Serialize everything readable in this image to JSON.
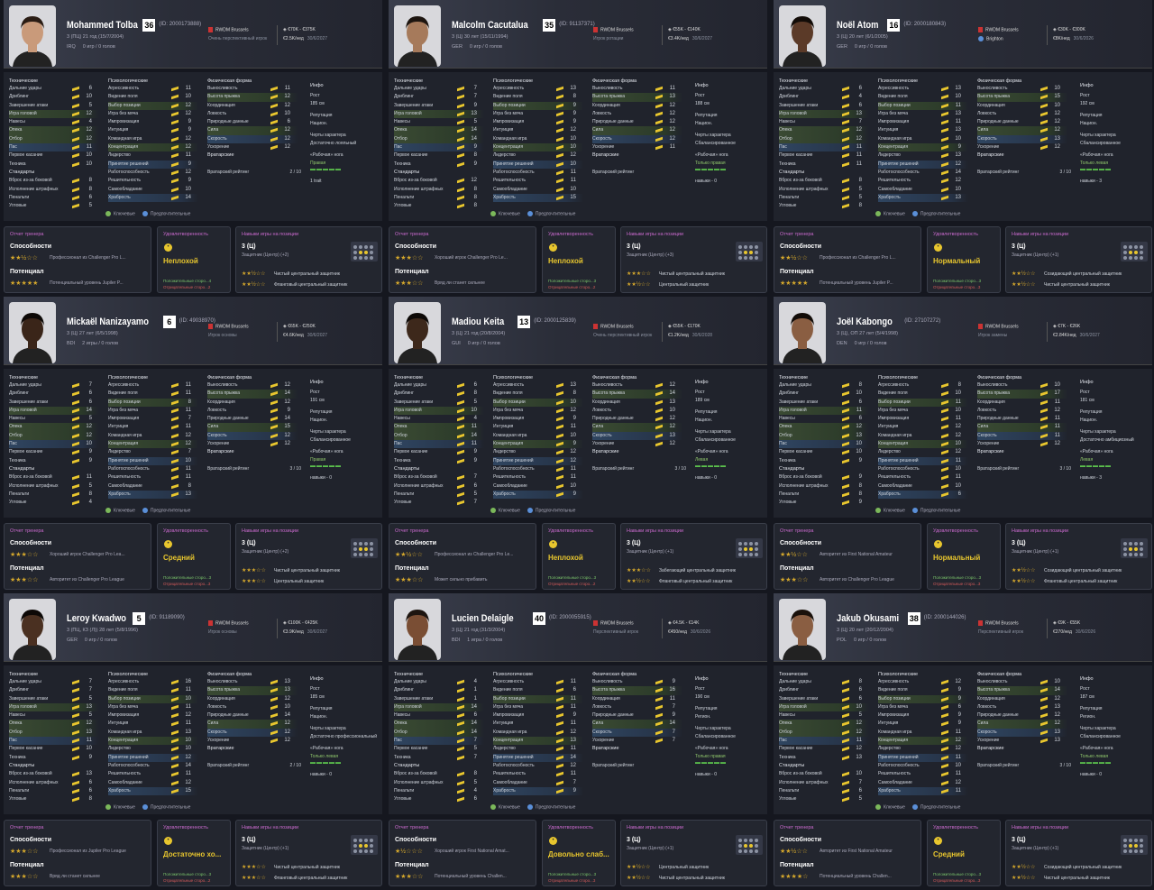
{
  "labels": {
    "technical": "Технические",
    "mental": "Психологические",
    "physical": "Физическая форма",
    "info": "Инфо",
    "height": "Рост",
    "reputation": "Репутация",
    "personality": "Черты характера",
    "foot": "«Рабочая» нога",
    "goalkeeping": "Вратарские",
    "gk_rating": "Вратарский рейтинг",
    "set_pieces": "Стандарты",
    "key": "Ключевые",
    "preferable": "Предпочтительные",
    "scout_report": "Отчет тренера",
    "ability": "Способности",
    "potential": "Потенциал",
    "satisfaction": "Удовлетворенность",
    "positive": "Положительные сторо...",
    "negative": "Отрицательные сторо...",
    "position_skills": "Навыки игры на позиции"
  },
  "attr_names": {
    "technical": [
      "Дальние удары",
      "Дриблинг",
      "Завершение атаки",
      "Игра головой",
      "Навесы",
      "Опека",
      "Отбор",
      "Пас",
      "Первое касание",
      "Техника"
    ],
    "set_pieces": [
      "Вброс из-за боковой",
      "Исполнение штрафных",
      "Пенальти",
      "Угловые"
    ],
    "mental": [
      "Агрессивность",
      "Видение поля",
      "Выбор позиции",
      "Игра без мяча",
      "Импровизация",
      "Интуиция",
      "Командная игра",
      "Концентрация",
      "Лидерство",
      "Принятие решений",
      "Работоспособность",
      "Решительность",
      "Самообладание",
      "Храбрость"
    ],
    "physical": [
      "Выносливость",
      "Высота прыжка",
      "Координация",
      "Ловкость",
      "Природные данные",
      "Сила",
      "Скорость",
      "Ускорение"
    ]
  },
  "players": [
    {
      "name": "Mohammed Tolba",
      "number": "36",
      "id": "(ID: 2000173888)",
      "info": "3 (ПЦ)  21 год (15/7/2004)",
      "nation": "IRQ",
      "games": "0 игр / 0 голов",
      "club": "RWDM Brussels",
      "role": "Очень перспективный игрок",
      "value": "€70K - €375K",
      "wage": "€2.5K/нед",
      "contract": "30/6/2027",
      "skin": "#c99a7a",
      "hair": "#2a1c14",
      "technical": [
        6,
        10,
        5,
        12,
        4,
        12,
        12,
        11,
        10,
        10
      ],
      "set_pieces": [
        8,
        8,
        6,
        5
      ],
      "mental": [
        11,
        10,
        12,
        12,
        9,
        9,
        12,
        12,
        11,
        9,
        12,
        9,
        10,
        14
      ],
      "physical": [
        11,
        12,
        12,
        10,
        6,
        12,
        12,
        12
      ],
      "height": "185 см",
      "reputation": "Национ.",
      "personality": "Достаточно лояльный",
      "foot": "Правая",
      "gk": "2 / 10",
      "extra": "1 trait",
      "ability_stars": "★★½☆☆",
      "ability_text": "Профессионал из Challenger Pro L...",
      "potential_stars": "★★★★★",
      "potential_text": "Потенциальный уровень Jupiler P...",
      "morale": "Неплохой",
      "morale_pos": "Положительные сторо...4",
      "morale_neg": "Отрицательные сторо...2",
      "pos_title": "3 (Ц)",
      "pos_sub": "Защитник (Центр) (+2)",
      "r1_stars": "★★½☆☆",
      "r1": "Чистый центральный защитник",
      "r2_stars": "★★½☆☆",
      "r2": "Фланговый центральный защитник"
    },
    {
      "name": "Malcolm Cacutalua",
      "number": "35",
      "id": "(ID: 91137371)",
      "info": "3 (Ц)  30 лет (15/11/1994)",
      "nation": "GER",
      "games": "0 игр / 0 голов",
      "club": "RWDM Brussels",
      "role": "Игрок ротации",
      "value": "€55K - €140K",
      "wage": "€3.4K/нед",
      "contract": "30/6/2027",
      "skin": "#a67a5b",
      "hair": "#1d1510",
      "technical": [
        7,
        7,
        9,
        13,
        5,
        14,
        14,
        9,
        8,
        9
      ],
      "set_pieces": [
        12,
        8,
        8,
        8
      ],
      "mental": [
        13,
        8,
        9,
        9,
        9,
        12,
        10,
        10,
        12,
        10,
        11,
        11,
        10,
        15
      ],
      "physical": [
        11,
        13,
        12,
        12,
        12,
        12,
        12,
        11
      ],
      "height": "188 см",
      "reputation": "Национ.",
      "personality": "Сбалансированное",
      "foot": "Только правая",
      "gk": "",
      "extra": "навыки - 0",
      "ability_stars": "★★★☆☆",
      "ability_text": "Хороший игрок Challenger Pro Le...",
      "potential_stars": "★★★☆☆",
      "potential_text": "Вряд ли станет сильнее",
      "morale": "Неплохой",
      "morale_pos": "Положительные сторо...3",
      "morale_neg": "Отрицательные сторо...2",
      "pos_title": "3 (Ц)",
      "pos_sub": "Защитник (Центр) (+3)",
      "r1_stars": "★★★☆☆",
      "r1": "Чистый центральный защитник",
      "r2_stars": "★★½☆☆",
      "r2": "Центральный защитник"
    },
    {
      "name": "Noël Atom",
      "number": "16",
      "id": "(ID: 2000180843)",
      "info": "3 (Ц)  20 лет (6/1/2005)",
      "nation": "GER",
      "games": "0 игр / 0 голов",
      "club": "RWDM Brussels",
      "club2": "Brighton",
      "value": "€30K - €300K",
      "wage": "€8K/нед",
      "contract": "30/6/2026",
      "skin": "#5b3a28",
      "hair": "#120c08",
      "technical": [
        6,
        4,
        6,
        13,
        7,
        12,
        12,
        11,
        11,
        11
      ],
      "set_pieces": [
        8,
        5,
        5,
        8
      ],
      "mental": [
        13,
        10,
        11,
        13,
        11,
        13,
        10,
        9,
        13,
        12,
        14,
        12,
        10,
        13
      ],
      "physical": [
        10,
        15,
        10,
        12,
        12,
        12,
        13,
        12
      ],
      "height": "192 см",
      "reputation": "Национ.",
      "personality": "Сбалансированное",
      "foot": "Только левая",
      "gk": "3 / 10",
      "extra": "навыки - 3",
      "ability_stars": "★★½☆☆",
      "ability_text": "Профессионал из Challenger Pro L...",
      "potential_stars": "★★★★★",
      "potential_text": "Потенциальный уровень Jupiler P...",
      "morale": "Нормальный",
      "morale_pos": "Положительные сторо...3",
      "morale_neg": "Отрицательные сторо...3",
      "pos_title": "3 (Ц)",
      "pos_sub": "Защитник (Центр) (+1)",
      "r1_stars": "★★½☆☆",
      "r1": "Созидающий центральный защитник",
      "r2_stars": "★★½☆☆",
      "r2": "Чистый центральный защитник"
    },
    {
      "name": "Mickaël Nanizayamo",
      "number": "6",
      "id": "(ID: 49038970)",
      "info": "3 (Ц)  27 лет (6/5/1998)",
      "nation": "BDI",
      "games": "2 игры / 0 голов",
      "club": "RWDM Brussels",
      "role": "Игрок основы",
      "value": "€65K - €250K",
      "wage": "€4.6K/нед",
      "contract": "30/6/2027",
      "skin": "#3a2519",
      "hair": "#0d0907",
      "technical": [
        7,
        6,
        6,
        14,
        5,
        12,
        12,
        10,
        9,
        9
      ],
      "set_pieces": [
        11,
        5,
        8,
        4
      ],
      "mental": [
        11,
        11,
        8,
        11,
        7,
        11,
        12,
        12,
        7,
        10,
        11,
        11,
        8,
        13
      ],
      "physical": [
        12,
        14,
        12,
        9,
        14,
        15,
        12,
        12
      ],
      "height": "191 см",
      "reputation": "Национ.",
      "personality": "Сбалансированное",
      "foot": "Правая",
      "gk": "3 / 10",
      "extra": "навыки - 0",
      "ability_stars": "★★★☆☆",
      "ability_text": "Хороший игрок Challenger Pro Lea...",
      "potential_stars": "★★★☆☆",
      "potential_text": "Авторитет из Challenger Pro League",
      "morale": "Средний",
      "morale_pos": "Положительные сторо...3",
      "morale_neg": "Отрицательные сторо...3",
      "pos_title": "3 (Ц)",
      "pos_sub": "Защитник (Центр) (+2)",
      "r1_stars": "★★★☆☆",
      "r1": "Чистый центральный защитник",
      "r2_stars": "★★★☆☆",
      "r2": "Центральный защитник"
    },
    {
      "name": "Madiou Keita",
      "number": "13",
      "id": "(ID: 2000125839)",
      "info": "3 (Ц)  21 год (20/8/2004)",
      "nation": "GUI",
      "games": "0 игр / 0 голов",
      "club": "RWDM Brussels",
      "role": "Очень перспективный игрок",
      "value": "€55K - €170K",
      "wage": "€1.2K/нед",
      "contract": "30/6/2028",
      "skin": "#3d281b",
      "hair": "#0d0907",
      "technical": [
        6,
        8,
        5,
        10,
        4,
        11,
        14,
        11,
        9,
        9
      ],
      "set_pieces": [
        7,
        6,
        5,
        7
      ],
      "mental": [
        13,
        8,
        10,
        12,
        9,
        11,
        10,
        9,
        12,
        12,
        11,
        11,
        10,
        9
      ],
      "physical": [
        12,
        14,
        13,
        10,
        12,
        12,
        13,
        12
      ],
      "height": "189 см",
      "reputation": "Национ.",
      "personality": "Сбалансированное",
      "foot": "Левая",
      "gk": "3 / 10",
      "extra": "навыки - 0",
      "ability_stars": "★★½☆☆",
      "ability_text": "Профессионал из Challenger Pro Le...",
      "potential_stars": "★★★☆☆",
      "potential_text": "Может сильно прибавить",
      "morale": "Неплохой",
      "morale_pos": "Положительные сторо...3",
      "morale_neg": "Отрицательные сторо...2",
      "pos_title": "3 (Ц)",
      "pos_sub": "Защитник (Центр) (+1)",
      "r1_stars": "★★★☆☆",
      "r1": "Забегающий центральный защитник",
      "r2_stars": "★★½☆☆",
      "r2": "Фланговый центральный защитник"
    },
    {
      "name": "Joël Kabongo",
      "number": "",
      "id": "(ID: 27107272)",
      "info": "3 (Ц), ОП  27 лет (5/4/1998)",
      "nation": "DEN",
      "games": "0 игр / 0 голов",
      "club": "RWDM Brussels",
      "role": "Игрок замены",
      "value": "€7K - €26K",
      "wage": "€2.84K/нед",
      "contract": "30/6/2027",
      "skin": "#8a5e42",
      "hair": "#120c08",
      "technical": [
        8,
        10,
        6,
        11,
        6,
        12,
        13,
        10,
        10,
        9
      ],
      "set_pieces": [
        9,
        8,
        8,
        9
      ],
      "mental": [
        8,
        10,
        11,
        10,
        11,
        12,
        12,
        10,
        12,
        11,
        10,
        11,
        10,
        6
      ],
      "physical": [
        10,
        17,
        11,
        12,
        11,
        11,
        11,
        12
      ],
      "height": "181 см",
      "reputation": "Национ.",
      "personality": "Достаточно амбициозный",
      "foot": "Левая",
      "gk": "3 / 10",
      "extra": "навыки - 3",
      "ability_stars": "★★½☆☆",
      "ability_text": "Авторитет из First National Amateur",
      "potential_stars": "★★★☆☆",
      "potential_text": "Авторитет из Challenger Pro League",
      "morale": "Нормальный",
      "morale_pos": "Положительные сторо...3",
      "morale_neg": "Отрицательные сторо...3",
      "pos_title": "3 (Ц)",
      "pos_sub": "Защитник (Центр) (+1)",
      "r1_stars": "★★½☆☆",
      "r1": "Созидающий центральный защитник",
      "r2_stars": "★★½☆☆",
      "r2": "Фланговый центральный защитник"
    },
    {
      "name": "Leroy Kwadwo",
      "number": "5",
      "id": "(ID: 91189090)",
      "info": "3 (ПЦ, КЗ (Л))  28 лет (5/8/1996)",
      "nation": "GER",
      "games": "0 игр / 0 голов",
      "club": "RWDM Brussels",
      "role": "Игрок основы",
      "value": "€100K - €425K",
      "wage": "€3.9K/нед",
      "contract": "30/6/2027",
      "skin": "#4a3021",
      "hair": "#0d0907",
      "technical": [
        7,
        7,
        5,
        13,
        5,
        12,
        13,
        11,
        10,
        9
      ],
      "set_pieces": [
        13,
        6,
        6,
        8
      ],
      "mental": [
        16,
        11,
        10,
        11,
        12,
        11,
        13,
        10,
        10,
        12,
        14,
        11,
        12,
        15
      ],
      "physical": [
        13,
        13,
        12,
        10,
        14,
        12,
        12,
        12
      ],
      "height": "185 см",
      "reputation": "Национ.",
      "personality": "Достаточно профессиональный",
      "foot": "Только левая",
      "gk": "2 / 10",
      "extra": "навыки - 0",
      "ability_stars": "★★★☆☆",
      "ability_text": "Профессионал из Jupiler Pro League",
      "potential_stars": "★★★☆☆",
      "potential_text": "Вряд ли станет сильнее",
      "morale": "Достаточно хо...",
      "morale_pos": "Положительные сторо...3",
      "morale_neg": "Отрицательные сторо...2",
      "pos_title": "3 (Ц)",
      "pos_sub": "Защитник (Центр) (+1)",
      "r1_stars": "★★★☆☆",
      "r1": "Чистый центральный защитник",
      "r2_stars": "★★★☆☆",
      "r2": "Фланговый центральный защитник"
    },
    {
      "name": "Lucien Delaigle",
      "number": "40",
      "id": "(ID: 2000055915)",
      "info": "3 (Ц)  21 год (31/3/2004)",
      "nation": "BDI",
      "games": "1 игра / 0 голов",
      "club": "RWDM Brussels",
      "role": "Перспективный игрок",
      "value": "€4.5K - €14K",
      "wage": "€450/нед",
      "contract": "30/6/2026",
      "skin": "#7a4e34",
      "hair": "#1d1510",
      "technical": [
        4,
        1,
        1,
        14,
        6,
        14,
        14,
        7,
        5,
        7
      ],
      "set_pieces": [
        8,
        5,
        4,
        6
      ],
      "mental": [
        11,
        6,
        11,
        11,
        9,
        11,
        12,
        13,
        11,
        14,
        12,
        11,
        7,
        9
      ],
      "physical": [
        9,
        16,
        11,
        7,
        9,
        14,
        7,
        7
      ],
      "height": "190 см",
      "reputation": "Регион.",
      "personality": "Сбалансированное",
      "foot": "Только правая",
      "gk": "",
      "extra": "навыки - 0",
      "ability_stars": "★½☆☆☆",
      "ability_text": "Хороший игрок First National Amat...",
      "potential_stars": "★★★☆☆",
      "potential_text": "Потенциальный уровень Challen...",
      "morale": "Довольно слаб...",
      "morale_pos": "Положительные сторо...3",
      "morale_neg": "Отрицательные сторо...3",
      "pos_title": "3 (Ц)",
      "pos_sub": "Защитник (Центр) (+1)",
      "r1_stars": "★★½☆☆",
      "r1": "Центральный защитник",
      "r2_stars": "★★½☆☆",
      "r2": "Чистый центральный защитник"
    },
    {
      "name": "Jakub Okusami",
      "number": "38",
      "id": "(ID: 2000144026)",
      "info": "3 (Ц)  20 лет (20/12/2004)",
      "nation": "POL",
      "games": "0 игр / 0 голов",
      "club": "RWDM Brussels",
      "role": "Перспективный игрок",
      "value": "€9K - €55K",
      "wage": "€270/нед",
      "contract": "30/6/2026",
      "skin": "#8a5e42",
      "hair": "#1a110b",
      "technical": [
        8,
        6,
        6,
        10,
        5,
        12,
        12,
        11,
        12,
        13
      ],
      "set_pieces": [
        10,
        7,
        6,
        5
      ],
      "mental": [
        12,
        9,
        9,
        6,
        9,
        9,
        11,
        12,
        12,
        11,
        10,
        11,
        12,
        11
      ],
      "physical": [
        10,
        14,
        12,
        13,
        12,
        12,
        13,
        13
      ],
      "height": "187 см",
      "reputation": "Регион.",
      "personality": "Сбалансированное",
      "foot": "Только левая",
      "gk": "3 / 10",
      "extra": "навыки - 0",
      "ability_stars": "★★½☆☆",
      "ability_text": "Авторитет из First National Amateur",
      "potential_stars": "★★★★☆",
      "potential_text": "Потенциальный уровень Challen...",
      "morale": "Средний",
      "morale_pos": "Положительные сторо...3",
      "morale_neg": "Отрицательные сторо...3",
      "pos_title": "3 (Ц)",
      "pos_sub": "Защитник (Центр) (+1)",
      "r1_stars": "★★½☆☆",
      "r1": "Созидающий центральный защитник",
      "r2_stars": "★★½☆☆",
      "r2": "Чистый центральный защитник"
    }
  ]
}
